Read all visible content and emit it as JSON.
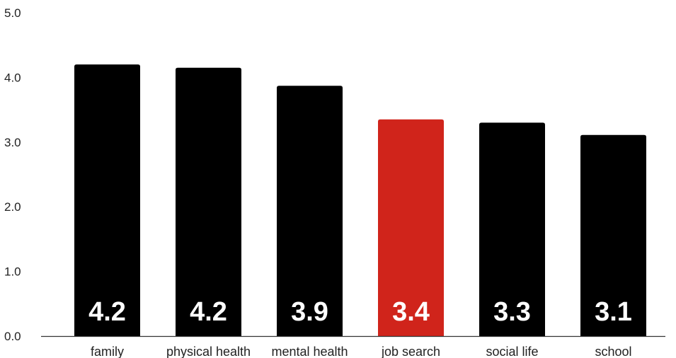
{
  "chart_data": {
    "type": "bar",
    "categories": [
      "family",
      "physical health",
      "mental health",
      "job search",
      "social life",
      "school"
    ],
    "values": [
      4.2,
      4.15,
      3.87,
      3.35,
      3.3,
      3.11
    ],
    "data_labels": [
      "4.2",
      "4.2",
      "3.9",
      "3.4",
      "3.3",
      "3.1"
    ],
    "highlight_index": 3,
    "bar_color": "#000000",
    "highlight_color": "#d0241b",
    "label_color": "#ffffff",
    "ylim": [
      0,
      5
    ],
    "yticks": [
      0,
      1,
      2,
      3,
      4,
      5
    ],
    "ytick_labels": [
      "0.0",
      "1.0",
      "2.0",
      "3.0",
      "4.0",
      "5.0"
    ],
    "grid": false,
    "legend": "none"
  }
}
